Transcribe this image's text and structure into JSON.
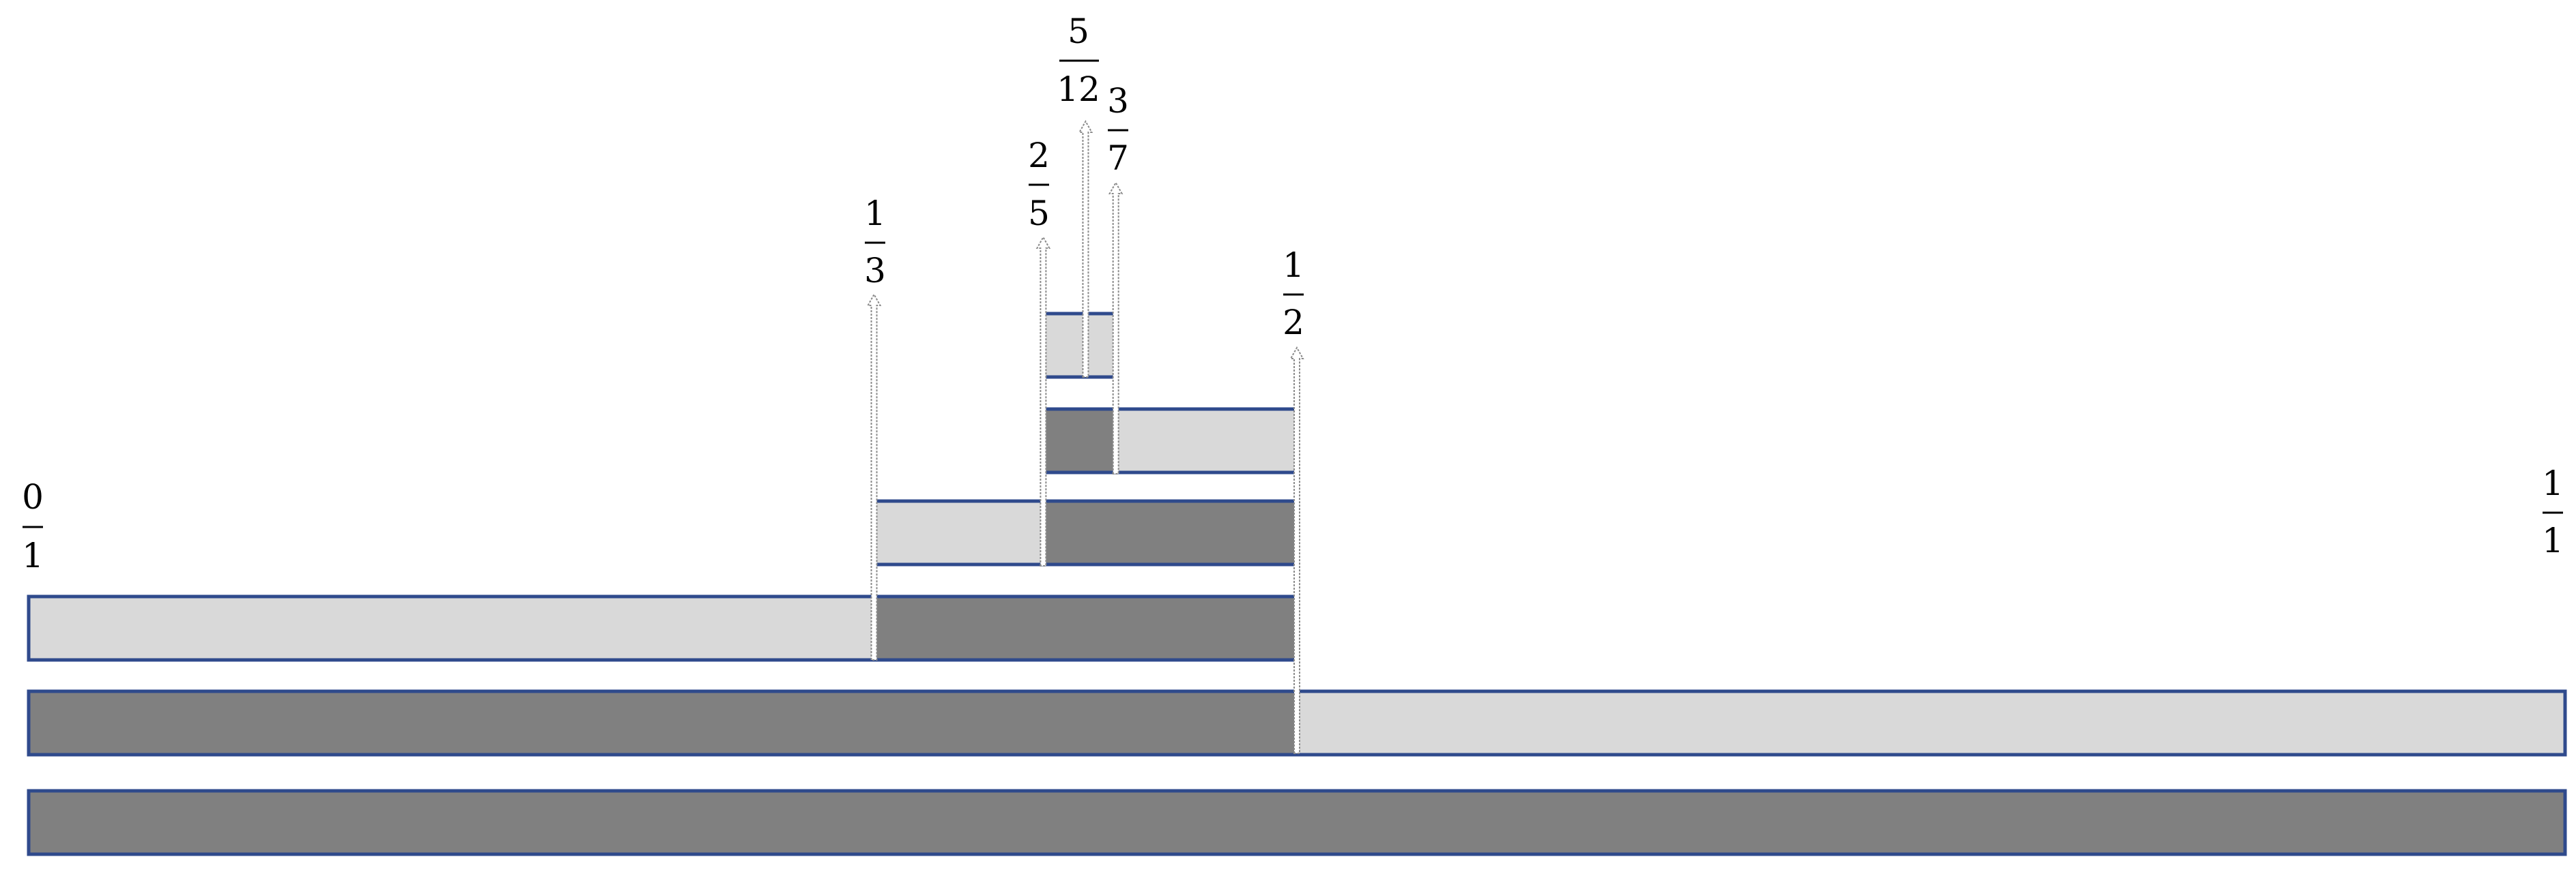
{
  "colors": {
    "dark": "#808080",
    "light": "#d9d9d9",
    "border": "#2f4a8c",
    "arrow_fill": "#ffffff",
    "arrow_stroke": "#8a8a8a",
    "text": "#000000"
  },
  "diagram": {
    "bars": [
      {
        "name": "bar-level-0",
        "segments": [
          {
            "from": 0,
            "to": 1,
            "shade": "dark"
          }
        ]
      },
      {
        "name": "bar-level-1",
        "segments": [
          {
            "from": 0,
            "to": 0.5,
            "shade": "dark"
          },
          {
            "from": 0.5,
            "to": 1,
            "shade": "light"
          }
        ]
      },
      {
        "name": "bar-level-2",
        "segments": [
          {
            "from": 0,
            "to": 0.3333,
            "shade": "light"
          },
          {
            "from": 0.3333,
            "to": 0.5,
            "shade": "dark"
          }
        ]
      },
      {
        "name": "bar-level-3",
        "segments": [
          {
            "from": 0.3333,
            "to": 0.4,
            "shade": "light"
          },
          {
            "from": 0.4,
            "to": 0.5,
            "shade": "dark"
          }
        ]
      },
      {
        "name": "bar-level-4",
        "segments": [
          {
            "from": 0.4,
            "to": 0.4286,
            "shade": "dark"
          },
          {
            "from": 0.4286,
            "to": 0.5,
            "shade": "light"
          }
        ]
      },
      {
        "name": "bar-level-5",
        "segments": [
          {
            "from": 0.4,
            "to": 0.4286,
            "shade": "light"
          }
        ]
      }
    ],
    "markers": [
      {
        "name": "marker-1-2",
        "value": 0.5,
        "numerator": "1",
        "denominator": "2"
      },
      {
        "name": "marker-1-3",
        "value": 0.3333,
        "numerator": "1",
        "denominator": "3"
      },
      {
        "name": "marker-2-5",
        "value": 0.4,
        "numerator": "2",
        "denominator": "5"
      },
      {
        "name": "marker-3-7",
        "value": 0.4286,
        "numerator": "3",
        "denominator": "7"
      },
      {
        "name": "marker-5-12",
        "value": 0.4167,
        "numerator": "5",
        "denominator": "12"
      }
    ],
    "endpoints": [
      {
        "name": "endpoint-0-1",
        "value": 0,
        "numerator": "0",
        "denominator": "1"
      },
      {
        "name": "endpoint-1-1",
        "value": 1,
        "numerator": "1",
        "denominator": "1"
      }
    ]
  }
}
